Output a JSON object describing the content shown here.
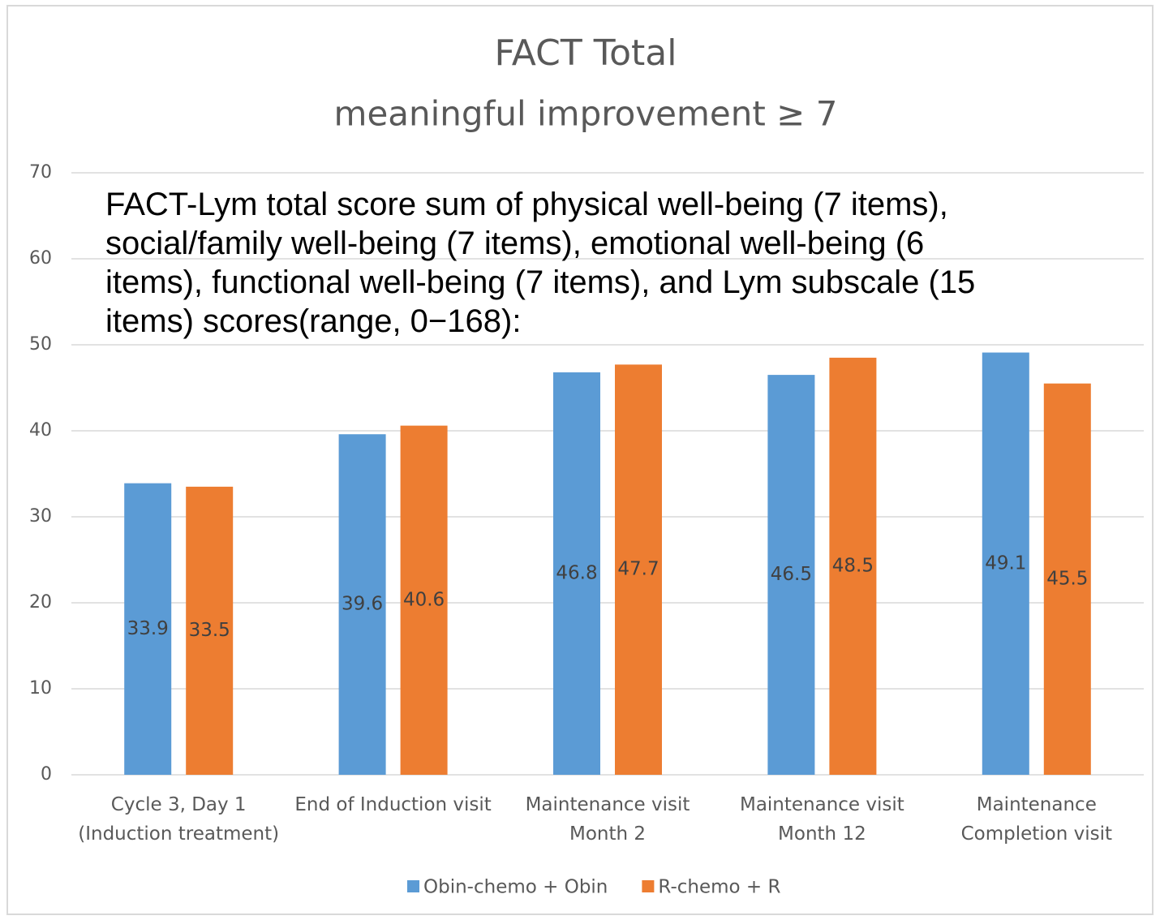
{
  "chart_data": {
    "type": "bar",
    "title": "FACT Total",
    "subtitle": "meaningful improvement ≥ 7",
    "annotation": "FACT-Lym total score sum of physical well-being (7 items),\nsocial/family well-being (7 items), emotional well-being (6\nitems), functional well-being (7 items), and Lym subscale (15\nitems) scores(range, 0−168):",
    "categories": [
      "Cycle 3, Day 1\n(Induction treatment)",
      "End of Induction visit",
      "Maintenance visit\nMonth 2",
      "Maintenance visit\nMonth 12",
      "Maintenance\nCompletion visit"
    ],
    "series": [
      {
        "name": "Obin-chemo + Obin",
        "color": "#5b9bd5",
        "values": [
          33.9,
          39.6,
          46.8,
          46.5,
          49.1
        ]
      },
      {
        "name": "R-chemo + R",
        "color": "#ed7d31",
        "values": [
          33.5,
          40.6,
          47.7,
          48.5,
          45.5
        ]
      }
    ],
    "ylim": [
      0,
      70
    ],
    "yticks": [
      0,
      10,
      20,
      30,
      40,
      50,
      60,
      70
    ],
    "grid": true,
    "legend": "bottom"
  }
}
